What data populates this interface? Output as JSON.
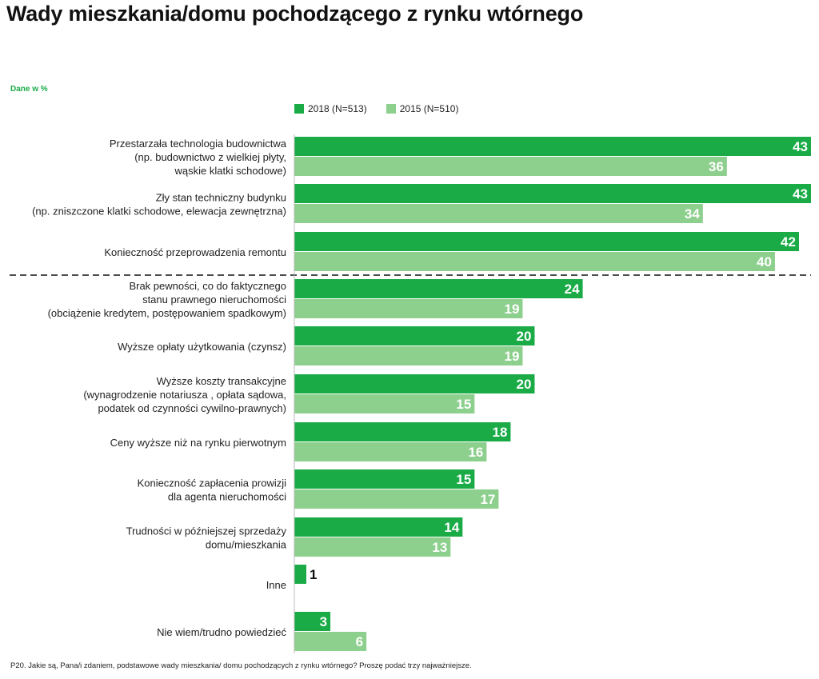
{
  "title": "Wady mieszkania/domu pochodzącego z rynku wtórnego",
  "note": "Dane w %",
  "footnote": "P20. Jakie są, Pana/i zdaniem, podstawowe wady mieszkania/ domu pochodzących z rynku wtórnego? Proszę podać trzy najważniejsze.",
  "colors": {
    "s2018": "#1aab47",
    "s2015": "#8dcf8d",
    "title": "#111111",
    "note": "#1aab47"
  },
  "legend": [
    {
      "label": "2018 (N=513)"
    },
    {
      "label": "2015 (N=510)"
    }
  ],
  "chart_data": {
    "type": "bar",
    "orientation": "horizontal",
    "title": "Wady mieszkania/domu pochodzącego z rynku wtórnego",
    "unit": "Dane w %",
    "categories": [
      [
        "Przestarzała technologia budownictwa",
        "(np. budownictwo z wielkiej płyty,",
        "wąskie klatki schodowe)"
      ],
      [
        "Zły stan techniczny budynku",
        "(np. zniszczone klatki schodowe, elewacja zewnętrzna)"
      ],
      [
        "Konieczność przeprowadzenia remontu"
      ],
      [
        "Brak pewności, co do faktycznego",
        "stanu prawnego nieruchomości",
        "(obciążenie kredytem, postępowaniem spadkowym)"
      ],
      [
        "Wyższe opłaty użytkowania (czynsz)"
      ],
      [
        "Wyższe koszty transakcyjne",
        "(wynagrodzenie notariusza , opłata sądowa,",
        "podatek od czynności cywilno-prawnych)"
      ],
      [
        "Ceny wyższe niż na rynku pierwotnym"
      ],
      [
        "Konieczność zapłacenia prowizji",
        "dla agenta nieruchomości"
      ],
      [
        "Trudności w późniejszej sprzedaży",
        "domu/mieszkania"
      ],
      [
        "Inne"
      ],
      [
        "Nie wiem/trudno powiedzieć"
      ]
    ],
    "series": [
      {
        "name": "2018 (N=513)",
        "values": [
          43,
          43,
          42,
          24,
          20,
          20,
          18,
          15,
          14,
          1,
          3
        ]
      },
      {
        "name": "2015 (N=510)",
        "values": [
          36,
          34,
          40,
          19,
          19,
          15,
          16,
          17,
          13,
          null,
          6
        ]
      }
    ],
    "xlim": [
      0,
      43
    ],
    "separator_after_index": 2,
    "grid": false,
    "legend_position": "top"
  }
}
